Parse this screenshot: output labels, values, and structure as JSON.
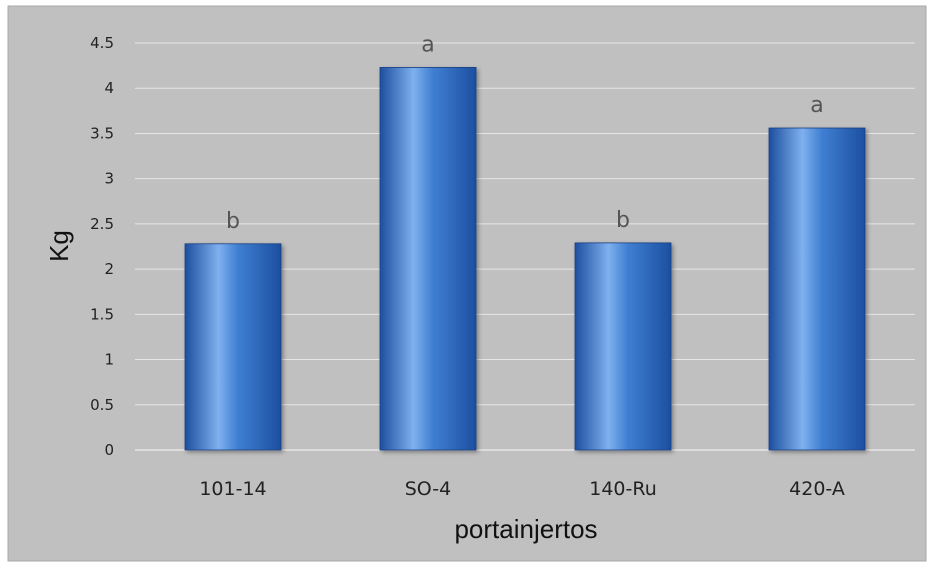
{
  "chart_data": {
    "type": "bar",
    "categories": [
      "101-14",
      "SO-4",
      "140-Ru",
      "420-A"
    ],
    "values": [
      2.28,
      4.23,
      2.29,
      3.56
    ],
    "significance_labels": [
      "b",
      "a",
      "b",
      "a"
    ],
    "xlabel": "portainjertos",
    "ylabel": "Kg",
    "ylim": [
      0,
      4.5
    ],
    "yticks": [
      "0",
      "0.5",
      "1",
      "1.5",
      "2",
      "2.5",
      "3",
      "3.5",
      "4",
      "4.5"
    ],
    "grid": true,
    "legend": "none",
    "colors": {
      "plot_background": "#c0c0c0",
      "border": "#a8a8a8",
      "gridline": "#e6e6e6",
      "bar_dark": "#1d4fa0",
      "bar_mid": "#3f7fd2",
      "bar_light": "#7fb0ee"
    }
  }
}
